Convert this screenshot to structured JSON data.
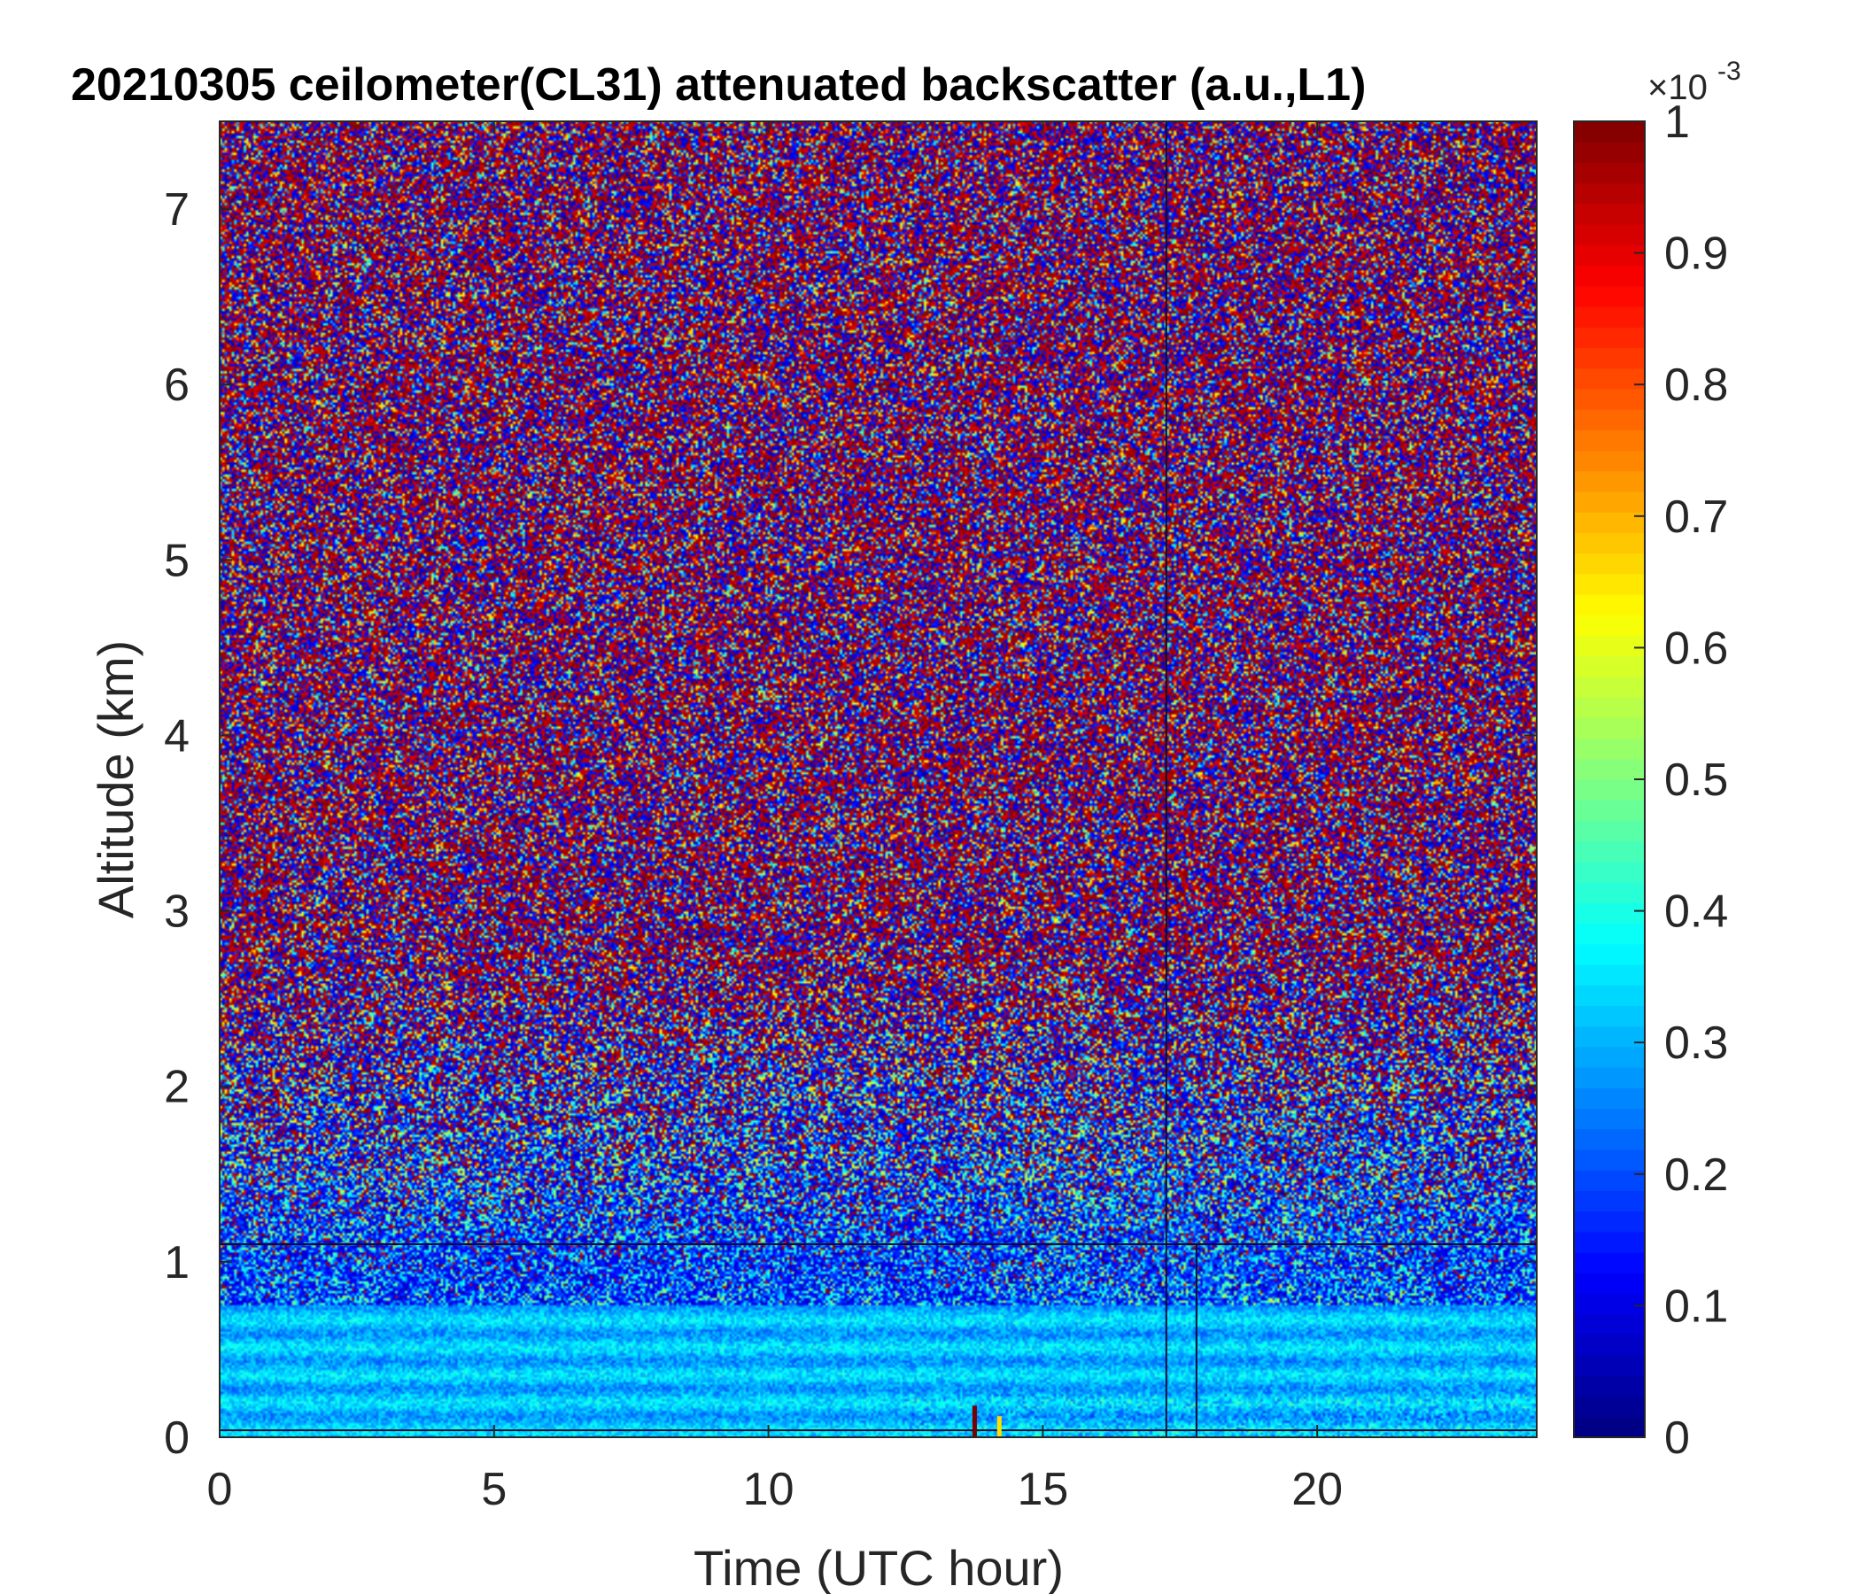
{
  "chart_data": {
    "type": "heatmap",
    "title": "20210305 ceilometer(CL31) attenuated backscatter (a.u.,L1)",
    "xlabel": "Time (UTC hour)",
    "ylabel": "Altitude (km)",
    "xlim": [
      0,
      24
    ],
    "ylim": [
      0,
      7.5
    ],
    "xticks": [
      0,
      5,
      10,
      15,
      20
    ],
    "xtick_labels": [
      "0",
      "5",
      "10",
      "15",
      "20"
    ],
    "yticks": [
      0,
      1,
      2,
      3,
      4,
      5,
      6,
      7
    ],
    "ytick_labels": [
      "0",
      "1",
      "2",
      "3",
      "4",
      "5",
      "6",
      "7"
    ],
    "colorbar": {
      "colormap": "jet",
      "range": [
        0,
        0.001
      ],
      "ticks": [
        0,
        0.1,
        0.2,
        0.3,
        0.4,
        0.5,
        0.6,
        0.7,
        0.8,
        0.9,
        1
      ],
      "tick_labels": [
        "0",
        "0.1",
        "0.2",
        "0.3",
        "0.4",
        "0.5",
        "0.6",
        "0.7",
        "0.8",
        "0.9",
        "1"
      ],
      "multiplier_base": "×10",
      "multiplier_exponent": "-3"
    },
    "grid": false,
    "description_values": {
      "mean_level_profile": [
        {
          "altitude_km": 0.05,
          "mean_value": 0.32
        },
        {
          "altitude_km": 0.3,
          "mean_value": 0.33
        },
        {
          "altitude_km": 0.6,
          "mean_value": 0.3
        },
        {
          "altitude_km": 1.0,
          "mean_value": 0.25
        },
        {
          "altitude_km": 1.5,
          "mean_value": 0.35
        },
        {
          "altitude_km": 2.5,
          "mean_value": 0.45
        },
        {
          "altitude_km": 4.0,
          "mean_value": 0.5
        },
        {
          "altitude_km": 7.5,
          "mean_value": 0.52
        }
      ],
      "horizontal_line_altitude_km": [
        1.1,
        0.04
      ],
      "vertical_line_time_hr": [
        17.25,
        17.8
      ],
      "surface_spike_time_hr": [
        13.75,
        14.2
      ]
    }
  }
}
